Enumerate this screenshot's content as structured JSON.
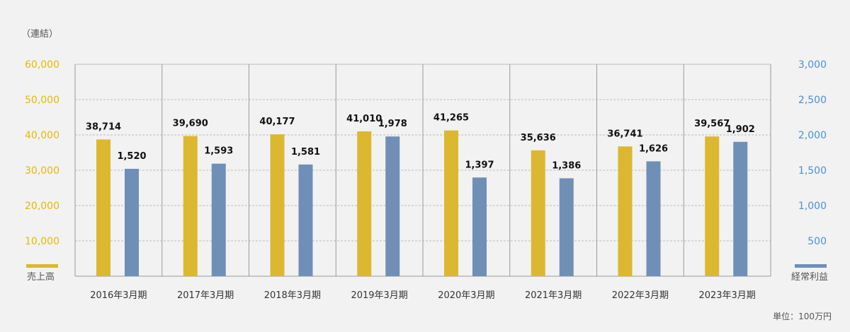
{
  "chart_data": {
    "type": "bar",
    "scope_label": "（連結）",
    "unit_label": "単位：100万円",
    "categories": [
      "2016年3月期",
      "2017年3月期",
      "2018年3月期",
      "2019年3月期",
      "2020年3月期",
      "2021年3月期",
      "2022年3月期",
      "2023年3月期"
    ],
    "series": [
      {
        "name": "売上高",
        "axis": "left",
        "color": "#dbb830",
        "values": [
          38714,
          39690,
          40177,
          41010,
          41265,
          35636,
          36741,
          39567
        ],
        "labels": [
          "38,714",
          "39,690",
          "40,177",
          "41,010",
          "41,265",
          "35,636",
          "36,741",
          "39,567"
        ]
      },
      {
        "name": "経常利益",
        "axis": "right",
        "color": "#6f8fb7",
        "values": [
          1520,
          1593,
          1581,
          1978,
          1397,
          1386,
          1626,
          1902
        ],
        "labels": [
          "1,520",
          "1,593",
          "1,581",
          "1,978",
          "1,397",
          "1,386",
          "1,626",
          "1,902"
        ]
      }
    ],
    "left_axis": {
      "ylim": [
        0,
        60000
      ],
      "color": "#e6b800",
      "ticks": [
        10000,
        20000,
        30000,
        40000,
        50000,
        60000
      ],
      "tick_labels": [
        "10,000",
        "20,000",
        "30,000",
        "40,000",
        "50,000",
        "60,000"
      ]
    },
    "right_axis": {
      "ylim": [
        0,
        3000
      ],
      "color": "#4a90d9",
      "ticks": [
        500,
        1000,
        1500,
        2000,
        2500,
        3000
      ],
      "tick_labels": [
        "500",
        "1,000",
        "1,500",
        "2,000",
        "2,500",
        "3,000"
      ]
    },
    "grid": true
  }
}
